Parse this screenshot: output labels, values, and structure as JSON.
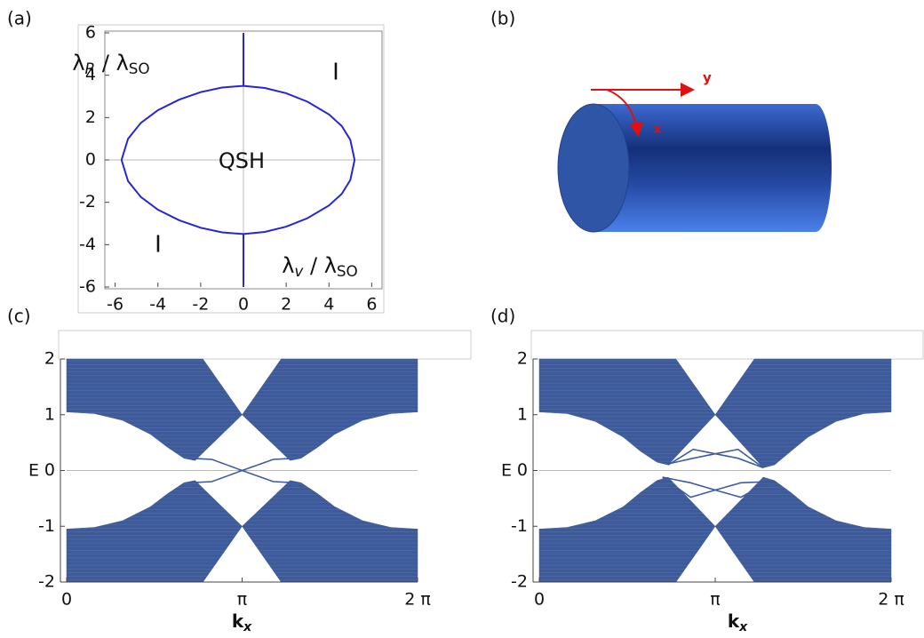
{
  "chart_data": [
    {
      "type": "line",
      "panel": "(a)",
      "xlabel": [
        "λ",
        "v",
        " / λ",
        "SO"
      ],
      "ylabel": [
        "λ",
        "R",
        " / λ",
        "SO"
      ],
      "annotations": [
        "QSH",
        "I",
        "I"
      ],
      "xlim": [
        -6.4,
        6.4
      ],
      "ylim": [
        -6,
        6
      ],
      "xticks": [
        -6,
        -4,
        -2,
        0,
        2,
        4,
        6
      ],
      "yticks": [
        -6,
        -4,
        -2,
        0,
        2,
        4,
        6
      ],
      "zero_lines": true,
      "series": [
        {
          "color": "#2626d4",
          "x": [
            -5.7,
            -5.4,
            -4.8,
            -4,
            -3,
            -2,
            -1,
            0,
            1,
            2,
            3,
            4,
            4.6,
            5,
            5.2
          ],
          "values": [
            0,
            1.0,
            1.75,
            2.35,
            2.85,
            3.2,
            3.42,
            3.5,
            3.4,
            3.15,
            2.75,
            2.15,
            1.6,
            0.95,
            0
          ]
        },
        {
          "color": "#2626d4",
          "x": [
            -5.7,
            -5.4,
            -4.8,
            -4,
            -3,
            -2,
            -1,
            0,
            1,
            2,
            3,
            4,
            4.6,
            5,
            5.2
          ],
          "values": [
            0,
            -1.0,
            -1.75,
            -2.35,
            -2.85,
            -3.2,
            -3.42,
            -3.5,
            -3.4,
            -3.15,
            -2.75,
            -2.15,
            -1.6,
            -0.95,
            0
          ]
        },
        {
          "color": "#2626d4",
          "x": [
            0,
            0
          ],
          "values": [
            3.5,
            6
          ]
        },
        {
          "color": "#2626d4",
          "x": [
            0,
            0
          ],
          "values": [
            -3.5,
            -6
          ]
        }
      ]
    },
    {
      "type": "band",
      "panel": "(c)",
      "xlabel": [
        "k",
        "x"
      ],
      "ylabel": "E",
      "xlim": [
        0,
        6.2832
      ],
      "ylim": [
        -2,
        2
      ],
      "xticks": [
        0,
        {
          "value": 3.1416,
          "label": "π"
        },
        {
          "value": 6.2832,
          "label": "2 π"
        }
      ],
      "yticks": [
        2,
        1,
        0,
        -1,
        -2
      ],
      "zero_lines": true,
      "series": [
        {
          "color": "#3d5a9a",
          "fill": true,
          "x": [
            0,
            0.5,
            1.0,
            1.5,
            1.8,
            2.1,
            2.3,
            3.1416,
            4.0,
            4.2,
            4.5,
            4.8,
            5.3,
            5.8,
            6.2832,
            6.2832,
            3.84,
            3.1416,
            2.44,
            0
          ],
          "values": [
            1.05,
            1.02,
            0.9,
            0.65,
            0.42,
            0.22,
            0.18,
            1.0,
            0.18,
            0.22,
            0.42,
            0.65,
            0.9,
            1.02,
            1.05,
            2,
            2,
            1,
            2,
            2
          ]
        },
        {
          "color": "#3d5a9a",
          "fill": true,
          "x": [
            0,
            0.5,
            1.0,
            1.5,
            1.8,
            2.1,
            2.3,
            3.1416,
            4.0,
            4.2,
            4.5,
            4.8,
            5.3,
            5.8,
            6.2832,
            6.2832,
            3.84,
            3.1416,
            2.44,
            0
          ],
          "values": [
            -1.05,
            -1.02,
            -0.9,
            -0.65,
            -0.42,
            -0.22,
            -0.18,
            -1.0,
            -0.18,
            -0.22,
            -0.42,
            -0.65,
            -0.9,
            -1.02,
            -1.05,
            -2,
            -2,
            -1,
            -2,
            -2
          ]
        },
        {
          "color": "#3d5a9a",
          "x": [
            2.2,
            2.6,
            3.1416,
            3.7,
            4.1
          ],
          "values": [
            0.22,
            0.2,
            0,
            -0.2,
            -0.22
          ]
        },
        {
          "color": "#3d5a9a",
          "x": [
            2.2,
            2.6,
            3.1416,
            3.7,
            4.1
          ],
          "values": [
            -0.22,
            -0.2,
            0,
            0.2,
            0.22
          ]
        }
      ]
    },
    {
      "type": "band",
      "panel": "(d)",
      "xlabel": [
        "k",
        "x"
      ],
      "ylabel": "E",
      "xlim": [
        0,
        6.2832
      ],
      "ylim": [
        -2,
        2
      ],
      "xticks": [
        0,
        {
          "value": 3.1416,
          "label": "π"
        },
        {
          "value": 6.2832,
          "label": "2 π"
        }
      ],
      "yticks": [
        2,
        1,
        0,
        -1,
        -2
      ],
      "zero_lines": true,
      "series": [
        {
          "color": "#3d5a9a",
          "fill": true,
          "x": [
            0,
            0.5,
            1.0,
            1.5,
            1.8,
            2.1,
            2.3,
            3.1416,
            4.0,
            4.2,
            4.5,
            4.8,
            5.3,
            5.8,
            6.2832,
            6.2832,
            3.84,
            3.1416,
            2.44,
            0
          ],
          "values": [
            1.05,
            1.02,
            0.88,
            0.6,
            0.35,
            0.15,
            0.1,
            1.0,
            0.05,
            0.1,
            0.35,
            0.6,
            0.88,
            1.02,
            1.05,
            2,
            2,
            1,
            2,
            2
          ]
        },
        {
          "color": "#3d5a9a",
          "fill": true,
          "x": [
            0,
            0.5,
            1.0,
            1.5,
            1.8,
            2.1,
            2.3,
            3.1416,
            4.0,
            4.2,
            4.5,
            4.8,
            5.3,
            5.8,
            6.2832,
            6.2832,
            3.84,
            3.1416,
            2.44,
            0
          ],
          "values": [
            -1.05,
            -1.02,
            -0.9,
            -0.65,
            -0.4,
            -0.18,
            -0.12,
            -1.0,
            -0.12,
            -0.18,
            -0.4,
            -0.65,
            -0.9,
            -1.02,
            -1.05,
            -2,
            -2,
            -1,
            -2,
            -2
          ]
        },
        {
          "color": "#3d5a9a",
          "x": [
            2.3,
            2.75,
            3.1416,
            3.55,
            4.0
          ],
          "values": [
            0.1,
            0.38,
            0.3,
            0.22,
            0.05
          ]
        },
        {
          "color": "#3d5a9a",
          "x": [
            2.3,
            2.75,
            3.1416,
            3.55,
            4.0
          ],
          "values": [
            0.12,
            0.22,
            0.3,
            0.38,
            0.05
          ]
        },
        {
          "color": "#3d5a9a",
          "x": [
            2.2,
            2.7,
            3.1416,
            3.6,
            4.1
          ],
          "values": [
            -0.12,
            -0.22,
            -0.35,
            -0.48,
            -0.2
          ]
        },
        {
          "color": "#3d5a9a",
          "x": [
            2.2,
            2.7,
            3.1416,
            3.6,
            4.1
          ],
          "values": [
            -0.12,
            -0.48,
            -0.35,
            -0.22,
            -0.2
          ]
        }
      ]
    }
  ],
  "diagram": {
    "panel": "(b)",
    "axis_labels": [
      "y",
      "x"
    ]
  }
}
